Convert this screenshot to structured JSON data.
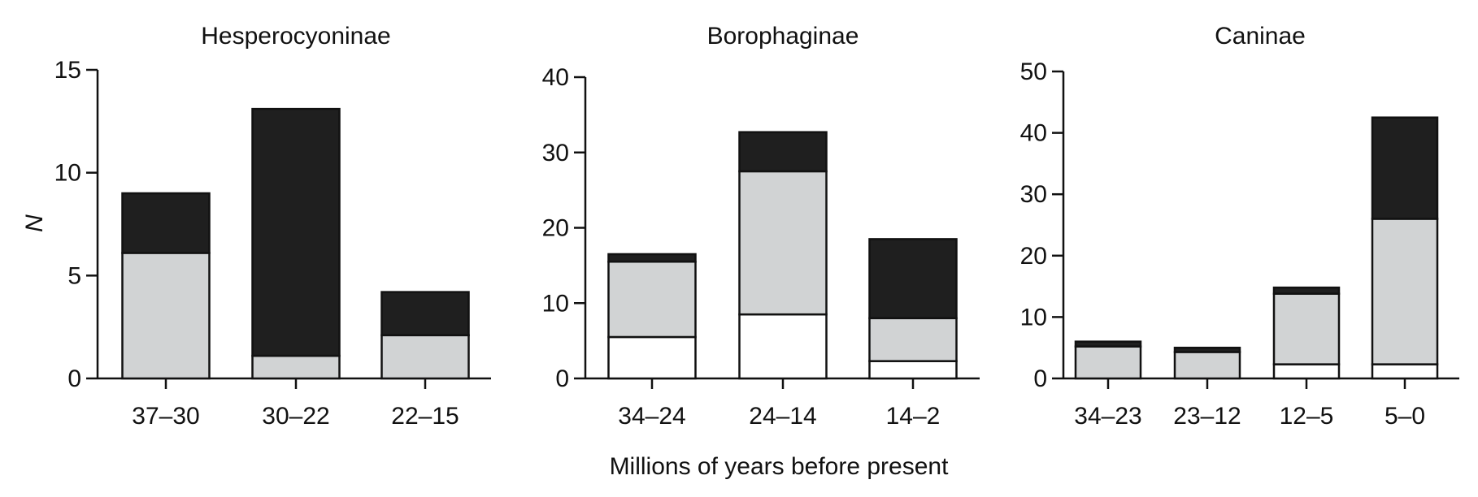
{
  "figure": {
    "ylabel": "N",
    "xlabel": "Millions of years before present"
  },
  "colors": {
    "dark": "#1f1f1f",
    "gray": "#d1d3d4",
    "white": "#ffffff",
    "stroke": "#111111"
  },
  "chart_data": [
    {
      "type": "bar",
      "stacked": true,
      "title": "Hesperocyoninae",
      "ylabel": "N",
      "xlabel": "",
      "ylim": [
        0,
        15
      ],
      "yticks": [
        0,
        5,
        10,
        15
      ],
      "categories": [
        "37–30",
        "30–22",
        "22–15"
      ],
      "series": [
        {
          "color": "white",
          "values": [
            0,
            0,
            0
          ]
        },
        {
          "color": "gray",
          "values": [
            6.1,
            1.1,
            2.1
          ]
        },
        {
          "color": "dark",
          "values": [
            2.9,
            12.0,
            2.1
          ]
        }
      ]
    },
    {
      "type": "bar",
      "stacked": true,
      "title": "Borophaginae",
      "ylabel": "",
      "xlabel": "Millions of years before present",
      "ylim": [
        0,
        40
      ],
      "yticks": [
        0,
        10,
        20,
        30,
        40
      ],
      "categories": [
        "34–24",
        "24–14",
        "14–2"
      ],
      "series": [
        {
          "color": "white",
          "values": [
            5.5,
            8.5,
            2.3
          ]
        },
        {
          "color": "gray",
          "values": [
            10.0,
            19.0,
            5.7
          ]
        },
        {
          "color": "dark",
          "values": [
            1.0,
            5.2,
            10.5
          ]
        }
      ]
    },
    {
      "type": "bar",
      "stacked": true,
      "title": "Caninae",
      "ylabel": "",
      "xlabel": "",
      "ylim": [
        0,
        50
      ],
      "yticks": [
        0,
        10,
        20,
        30,
        40,
        50
      ],
      "categories": [
        "34–23",
        "23–12",
        "12–5",
        "5–0"
      ],
      "series": [
        {
          "color": "white",
          "values": [
            0,
            0,
            2.3,
            2.3
          ]
        },
        {
          "color": "gray",
          "values": [
            5.2,
            4.3,
            11.5,
            23.7
          ]
        },
        {
          "color": "dark",
          "values": [
            0.8,
            0.7,
            1.0,
            16.5
          ]
        }
      ]
    }
  ]
}
